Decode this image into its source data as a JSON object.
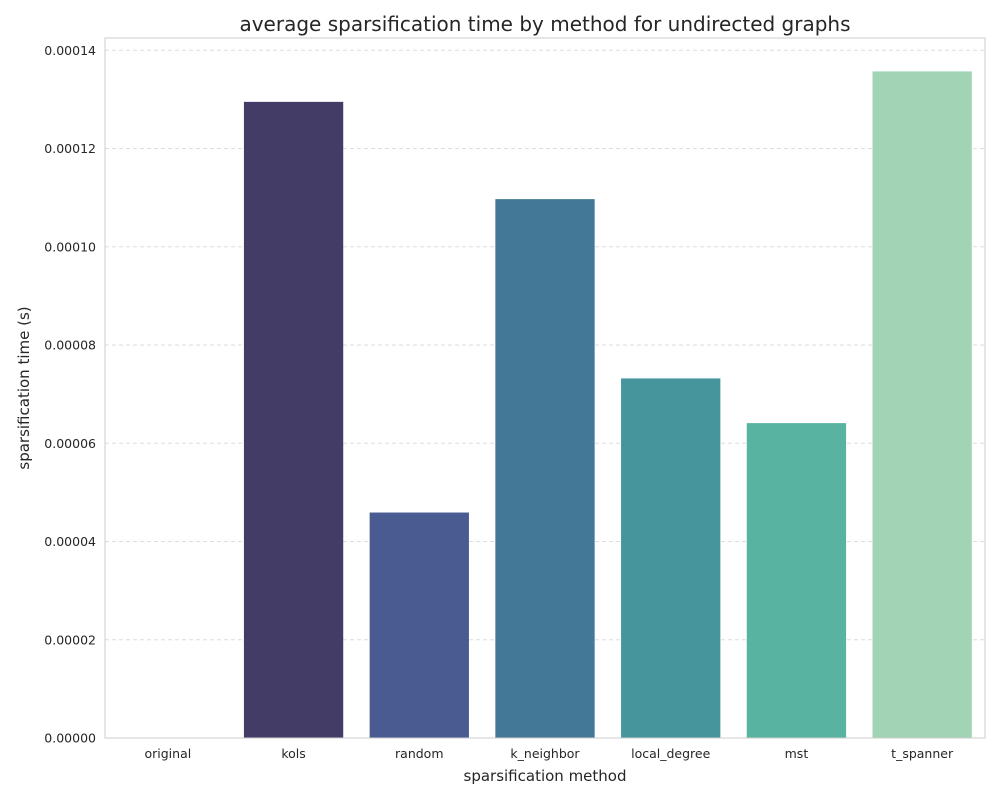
{
  "chart_data": {
    "type": "bar",
    "title": "average sparsification time by method for undirected graphs",
    "xlabel": "sparsification method",
    "ylabel": "sparsification time (s)",
    "categories": [
      "original",
      "kols",
      "random",
      "k_neighbor",
      "local_degree",
      "mst",
      "t_spanner"
    ],
    "values": [
      0.0,
      0.0001295,
      4.59e-05,
      0.0001097,
      7.32e-05,
      6.41e-05,
      0.0001357
    ],
    "colors": [
      "#2d1e3e",
      "#433c66",
      "#4a5b91",
      "#447897",
      "#46949c",
      "#58b3a1",
      "#a1d3b5"
    ],
    "ylim": [
      0,
      0.0001425
    ],
    "yticks": [
      0,
      2e-05,
      4e-05,
      6e-05,
      8e-05,
      0.0001,
      0.00012,
      0.00014
    ],
    "ytick_labels": [
      "0.00000",
      "0.00002",
      "0.00004",
      "0.00006",
      "0.00008",
      "0.00010",
      "0.00012",
      "0.00014"
    ],
    "grid": "y-dashed",
    "legend": "none"
  }
}
